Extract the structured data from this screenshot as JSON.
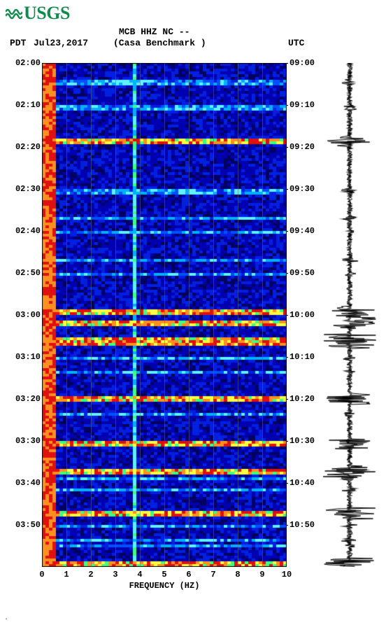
{
  "logo_text": "USGS",
  "header": {
    "timezone_left": "PDT",
    "date": "Jul23,2017",
    "station": "MCB HHZ NC --",
    "station_name": "(Casa Benchmark )",
    "timezone_right": "UTC"
  },
  "time_axis": {
    "left_labels": [
      "02:00",
      "02:10",
      "02:20",
      "02:30",
      "02:40",
      "02:50",
      "03:00",
      "03:10",
      "03:20",
      "03:30",
      "03:40",
      "03:50"
    ],
    "right_labels": [
      "09:00",
      "09:10",
      "09:20",
      "09:30",
      "09:40",
      "09:50",
      "10:00",
      "10:10",
      "10:20",
      "10:30",
      "10:40",
      "10:50"
    ],
    "n_major": 12
  },
  "freq_axis": {
    "ticks": [
      "0",
      "1",
      "2",
      "3",
      "4",
      "5",
      "6",
      "7",
      "8",
      "9",
      "10"
    ],
    "title": "FREQUENCY (HZ)",
    "min": 0,
    "max": 10
  },
  "spectrogram": {
    "type": "spectrogram",
    "n_rows": 180,
    "n_cols": 70,
    "low_freq_band_hz": 0.5,
    "vertical_artifact_hz": 3.7,
    "event_rows": [
      27,
      28,
      88,
      89,
      92,
      93,
      119,
      120,
      135,
      136,
      160,
      161,
      178,
      179,
      98,
      99,
      100,
      145,
      146
    ],
    "moderate_rows": [
      6,
      7,
      15,
      16,
      45,
      46,
      55,
      60,
      70,
      75,
      105,
      110,
      125,
      148,
      152,
      165,
      170,
      172
    ],
    "palette": {
      "dark": "#000060",
      "blue1": "#0000b0",
      "blue2": "#0020e0",
      "blue3": "#0050ff",
      "cyan": "#00b0ff",
      "lcyan": "#60f0ff",
      "green": "#40ff80",
      "yellow": "#ffff40",
      "orange": "#ff9020",
      "red": "#e01010",
      "dred": "#a00000"
    },
    "grid_color": "#666",
    "background": "#ffffff"
  },
  "seismogram": {
    "type": "waveform",
    "color": "#000000",
    "background": "#ffffff",
    "n_points": 720,
    "base_amplitude": 4,
    "event_amplitude": 38
  },
  "footnote": "."
}
